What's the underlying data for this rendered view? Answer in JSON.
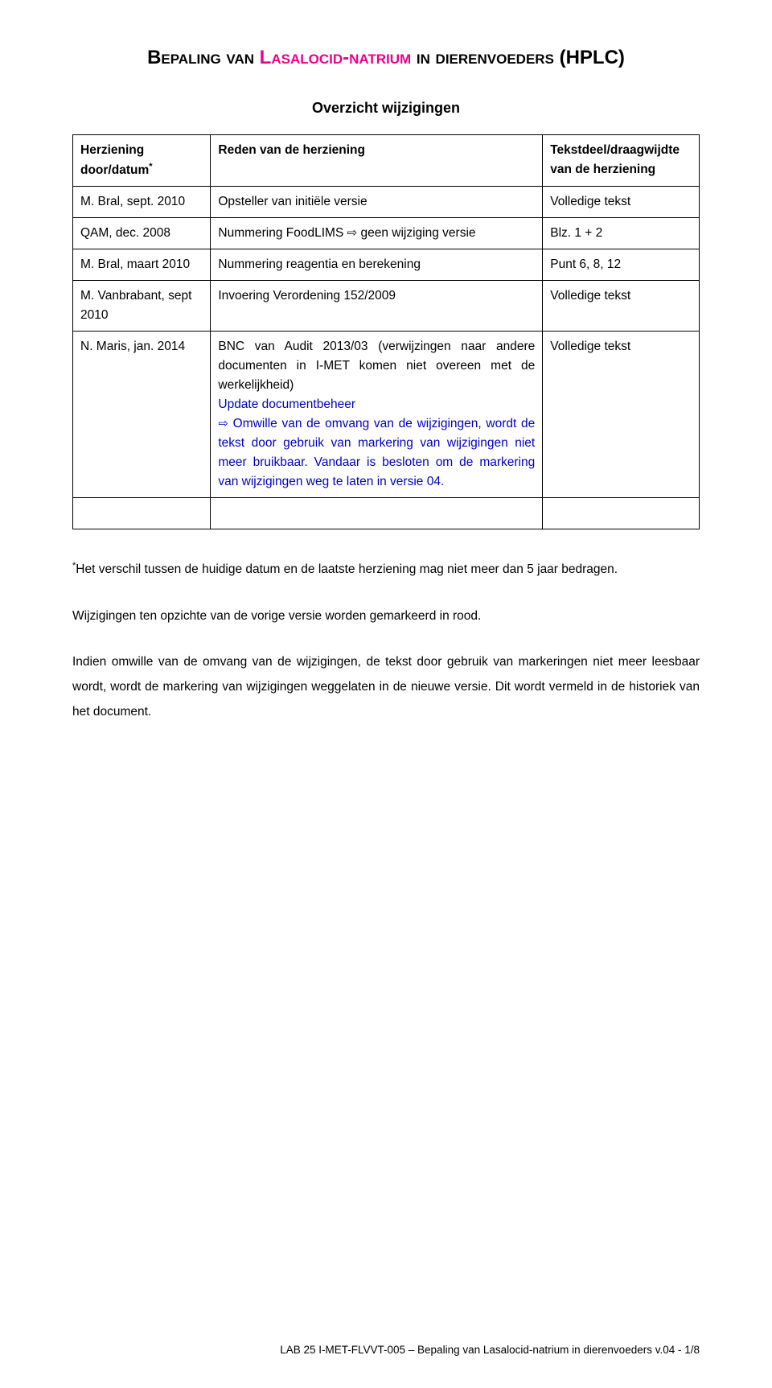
{
  "title": {
    "part1_black": "Bepaling van ",
    "part2_magenta": "Lasalocid-natrium",
    "part3_black": " in dierenvoeders ",
    "part4_black_plain": "(HPLC)"
  },
  "subtitle": "Overzicht wijzigingen",
  "table": {
    "head": {
      "c1_line1": "Herziening",
      "c1_line2": "door/datum",
      "c1_sup": "*",
      "c2": "Reden van de herziening",
      "c3_line1": "Tekstdeel/draagwijdte",
      "c3_line2": "van de herziening"
    },
    "rows": [
      {
        "c1": "M. Bral, sept. 2010",
        "c2": "Opsteller van initiële versie",
        "c3": "Volledige tekst"
      },
      {
        "c1": "QAM, dec. 2008",
        "c2_pre": "Nummering FoodLIMS ",
        "c2_post": " geen wijziging versie",
        "c3": "Blz. 1 + 2"
      },
      {
        "c1": "M. Bral, maart 2010",
        "c2": "Nummering reagentia en berekening",
        "c3": "Punt 6, 8, 12"
      },
      {
        "c1": "M. Vanbrabant, sept 2010",
        "c2": "Invoering Verordening 152/2009",
        "c3": "Volledige tekst"
      },
      {
        "c1": "N. Maris, jan. 2014",
        "c2_l1": "BNC van Audit 2013/03 (verwijzingen naar andere documenten in I-MET komen niet overeen met de werkelijkheid)",
        "c2_l2": "Update documentbeheer",
        "c2_l3a": " Omwille van de omvang van de wijzigingen, wordt de tekst door gebruik van markering van wijzigingen niet meer bruikbaar. ",
        "c2_l3b": "Vandaar is besloten om de markering van wijzigingen weg te laten in versie 04.",
        "c3": "Volledige tekst"
      }
    ],
    "empty_row": true
  },
  "note": {
    "sup": "*",
    "text": "Het verschil tussen de huidige datum en de laatste herziening mag niet meer dan 5 jaar bedragen."
  },
  "para2": "Wijzigingen ten opzichte van de vorige versie worden gemarkeerd in rood.",
  "para3": "Indien omwille van de omvang van de wijzigingen, de tekst door gebruik van markeringen niet meer leesbaar wordt, wordt de markering van wijzigingen weggelaten in de nieuwe versie. Dit wordt vermeld in de historiek van het document.",
  "footer": "LAB 25 I-MET-FLVVT-005 – Bepaling van Lasalocid-natrium in dierenvoeders v.04 - 1/8",
  "colors": {
    "magenta": "#ec008c",
    "blue": "#0000c0",
    "black": "#000000"
  },
  "glyphs": {
    "arrow": "⇨"
  }
}
